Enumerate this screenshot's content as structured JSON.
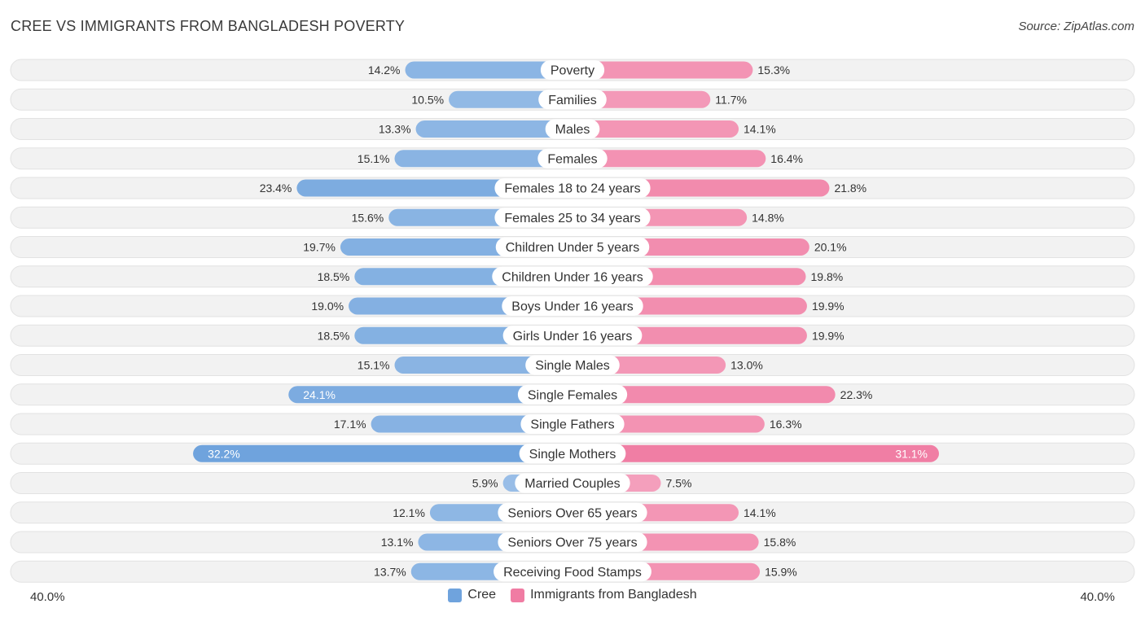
{
  "chart_data": {
    "type": "bar",
    "orientation": "horizontal-diverging",
    "title": "CREE VS IMMIGRANTS FROM BANGLADESH POVERTY",
    "source": "Source: ZipAtlas.com",
    "categories": [
      "Poverty",
      "Families",
      "Males",
      "Females",
      "Females 18 to 24 years",
      "Females 25 to 34 years",
      "Children Under 5 years",
      "Children Under 16 years",
      "Boys Under 16 years",
      "Girls Under 16 years",
      "Single Males",
      "Single Females",
      "Single Fathers",
      "Single Mothers",
      "Married Couples",
      "Seniors Over 65 years",
      "Seniors Over 75 years",
      "Receiving Food Stamps"
    ],
    "series": [
      {
        "name": "Cree",
        "color": "#6fa3dd",
        "values": [
          14.2,
          10.5,
          13.3,
          15.1,
          23.4,
          15.6,
          19.7,
          18.5,
          19.0,
          18.5,
          15.1,
          24.1,
          17.1,
          32.2,
          5.9,
          12.1,
          13.1,
          13.7
        ],
        "labels": [
          "14.2%",
          "10.5%",
          "13.3%",
          "15.1%",
          "23.4%",
          "15.6%",
          "19.7%",
          "18.5%",
          "19.0%",
          "18.5%",
          "15.1%",
          "24.1%",
          "17.1%",
          "32.2%",
          "5.9%",
          "12.1%",
          "13.1%",
          "13.7%"
        ]
      },
      {
        "name": "Immigrants from Bangladesh",
        "color": "#f07ca3",
        "values": [
          15.3,
          11.7,
          14.1,
          16.4,
          21.8,
          14.8,
          20.1,
          19.8,
          19.9,
          19.9,
          13.0,
          22.3,
          16.3,
          31.1,
          7.5,
          14.1,
          15.8,
          15.9
        ],
        "labels": [
          "15.3%",
          "11.7%",
          "14.1%",
          "16.4%",
          "21.8%",
          "14.8%",
          "20.1%",
          "19.8%",
          "19.9%",
          "19.9%",
          "13.0%",
          "22.3%",
          "16.3%",
          "31.1%",
          "7.5%",
          "14.1%",
          "15.8%",
          "15.9%"
        ]
      }
    ],
    "xlim": [
      0,
      40
    ],
    "axis_min_label": "40.0%",
    "axis_max_label": "40.0%",
    "legend_position": "bottom-center"
  }
}
